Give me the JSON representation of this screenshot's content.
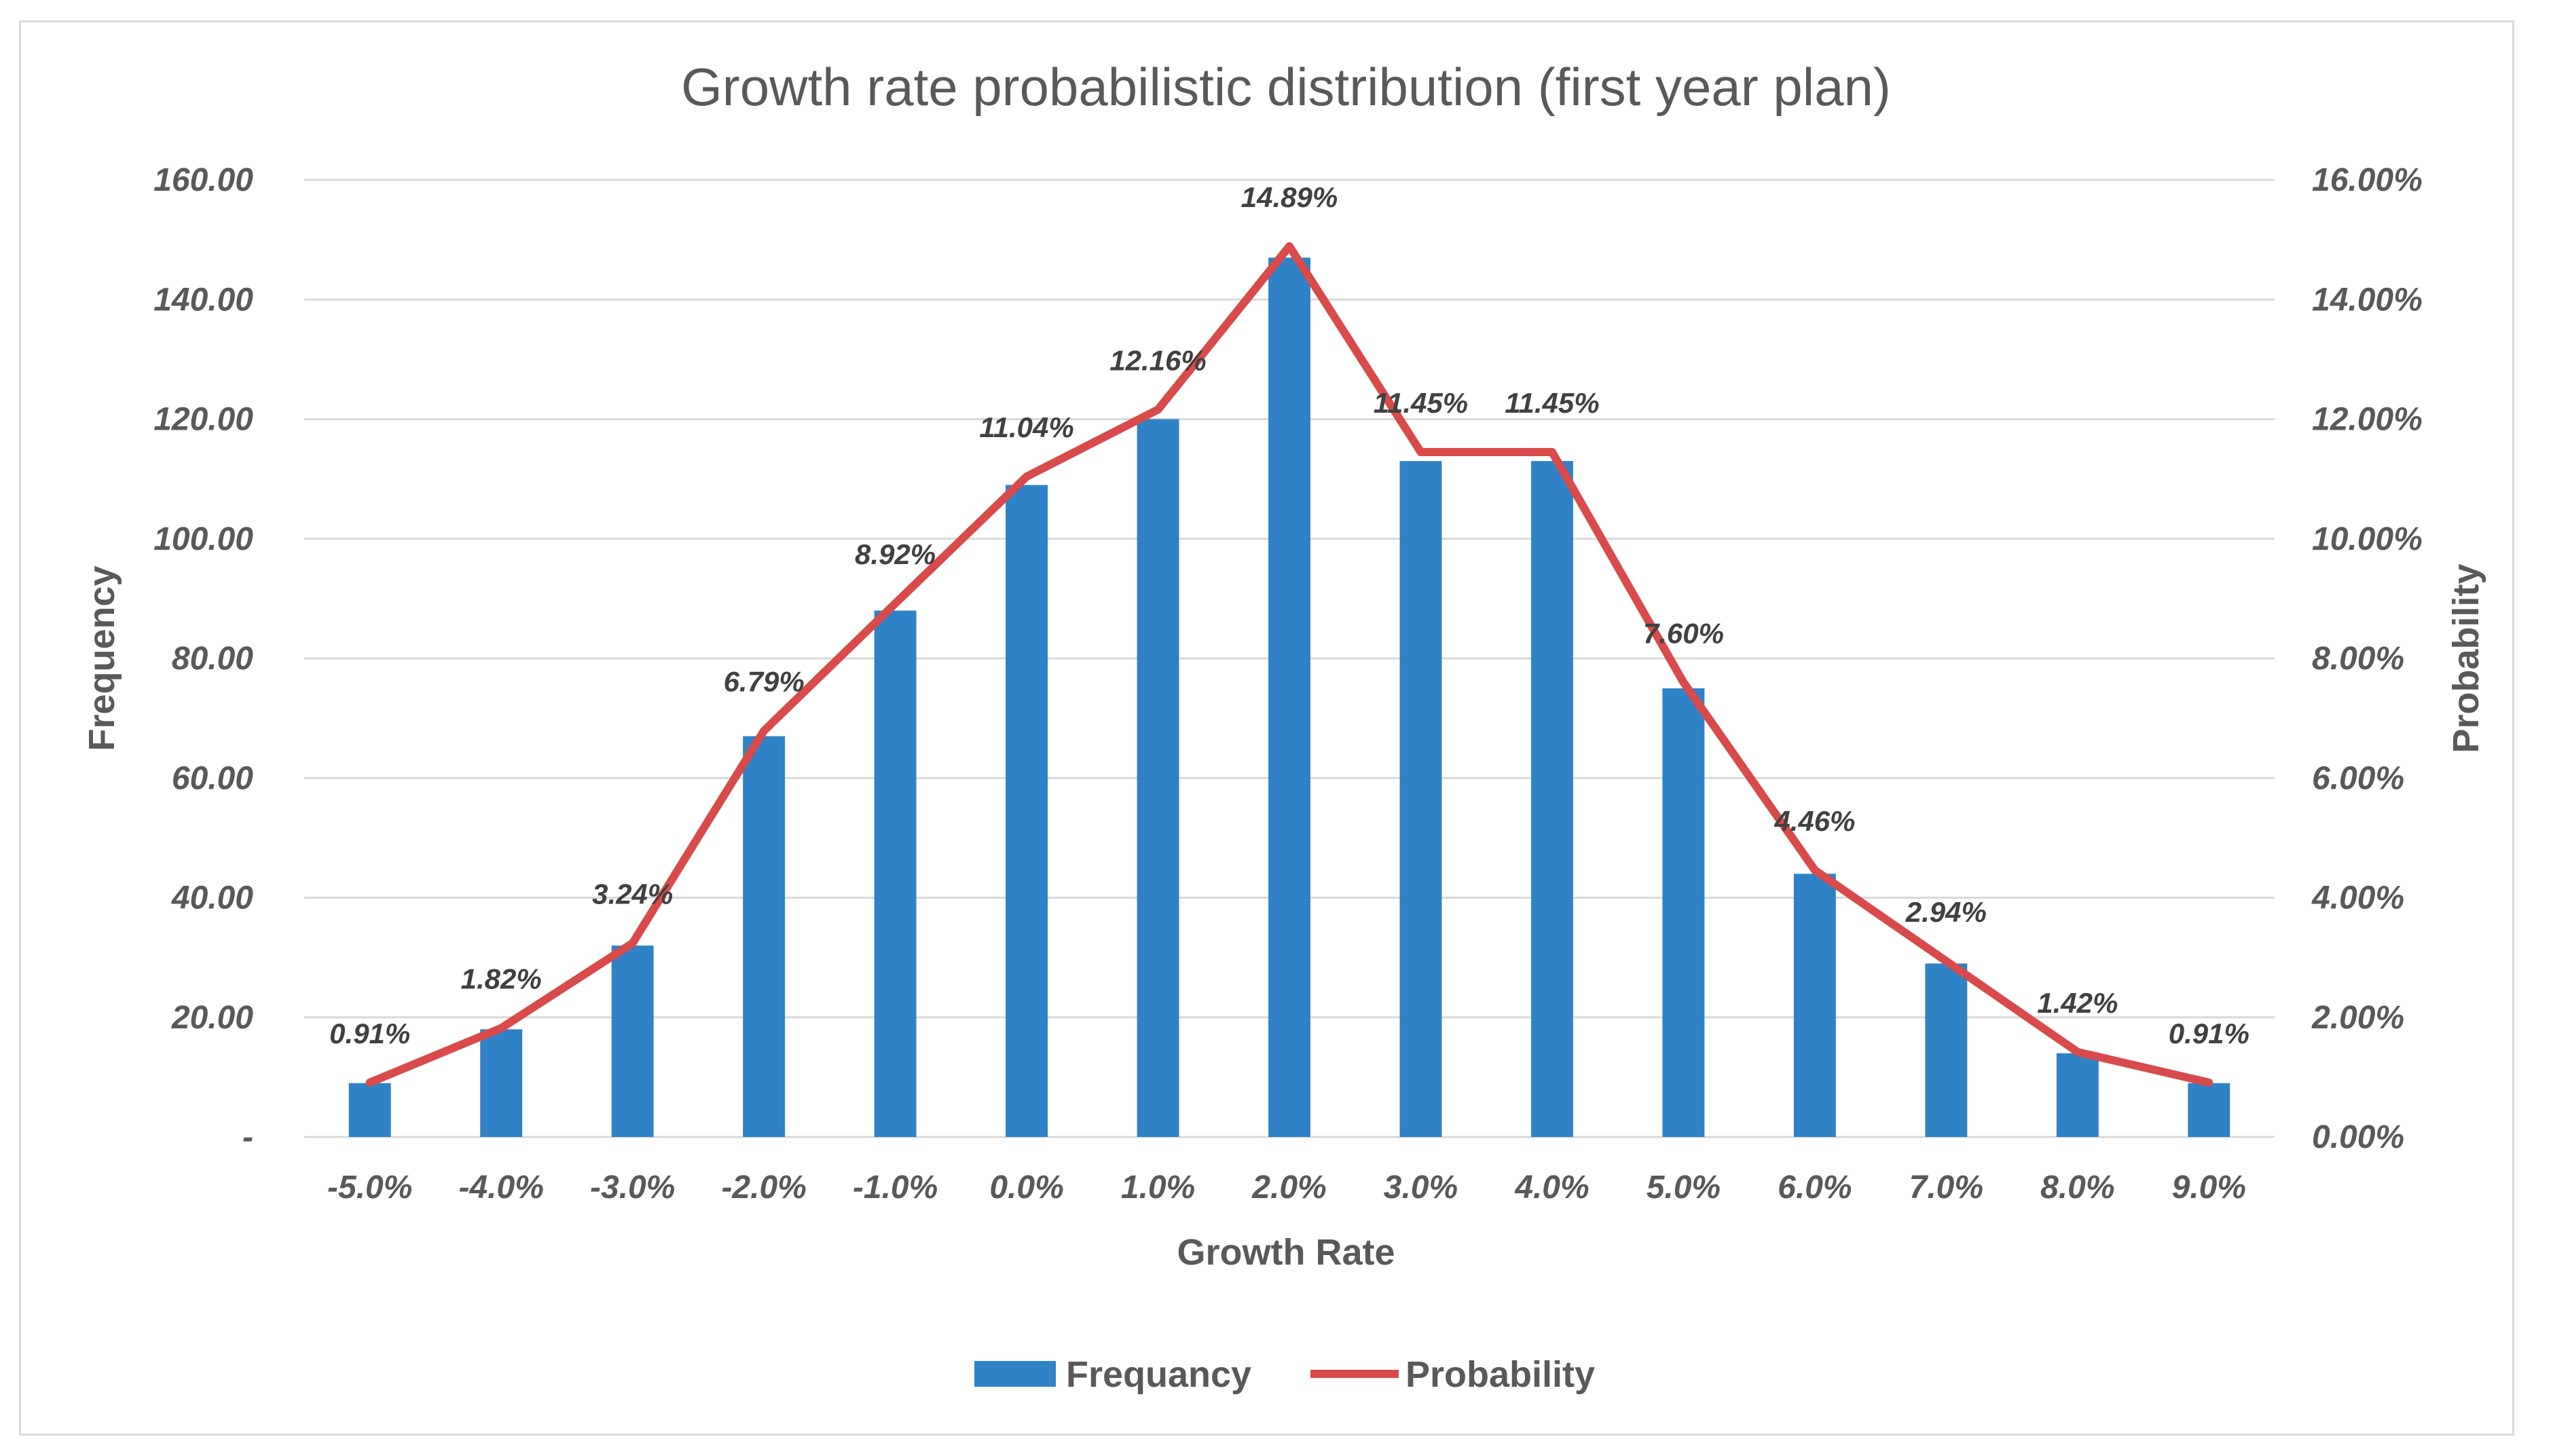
{
  "chart_data": {
    "type": "bar",
    "title": "Growth rate probabilistic distribution (first year plan)",
    "xlabel": "Growth Rate",
    "ylabel": "Frequency",
    "y2label": "Probability",
    "categories": [
      "-5.0%",
      "-4.0%",
      "-3.0%",
      "-2.0%",
      "-1.0%",
      "0.0%",
      "1.0%",
      "2.0%",
      "3.0%",
      "4.0%",
      "5.0%",
      "6.0%",
      "7.0%",
      "8.0%",
      "9.0%"
    ],
    "series": [
      {
        "name": "Frequancy",
        "type": "bar",
        "axis": "left",
        "color": "#2e82c5",
        "values": [
          9,
          18,
          32,
          67,
          88,
          109,
          120,
          147,
          113,
          113,
          75,
          44,
          29,
          14,
          9
        ]
      },
      {
        "name": "Probability",
        "type": "line",
        "axis": "right",
        "color": "#d94a4a",
        "values": [
          0.91,
          1.82,
          3.24,
          6.79,
          8.92,
          11.04,
          12.16,
          14.89,
          11.45,
          11.45,
          7.6,
          4.46,
          2.94,
          1.42,
          0.91
        ],
        "labels": [
          "0.91%",
          "1.82%",
          "3.24%",
          "6.79%",
          "8.92%",
          "11.04%",
          "12.16%",
          "14.89%",
          "11.45%",
          "11.45%",
          "7.60%",
          "4.46%",
          "2.94%",
          "1.42%",
          "0.91%"
        ]
      }
    ],
    "ylim": [
      0,
      160
    ],
    "y2lim": [
      0,
      16
    ],
    "yticks": [
      0,
      20,
      40,
      60,
      80,
      100,
      120,
      140,
      160
    ],
    "ytick_labels": [
      "-",
      "20.00",
      "40.00",
      "60.00",
      "80.00",
      "100.00",
      "120.00",
      "140.00",
      "160.00"
    ],
    "y2tick_labels": [
      "0.00%",
      "2.00%",
      "4.00%",
      "6.00%",
      "8.00%",
      "10.00%",
      "12.00%",
      "14.00%",
      "16.00%"
    ],
    "grid": true,
    "legend_position": "bottom"
  }
}
